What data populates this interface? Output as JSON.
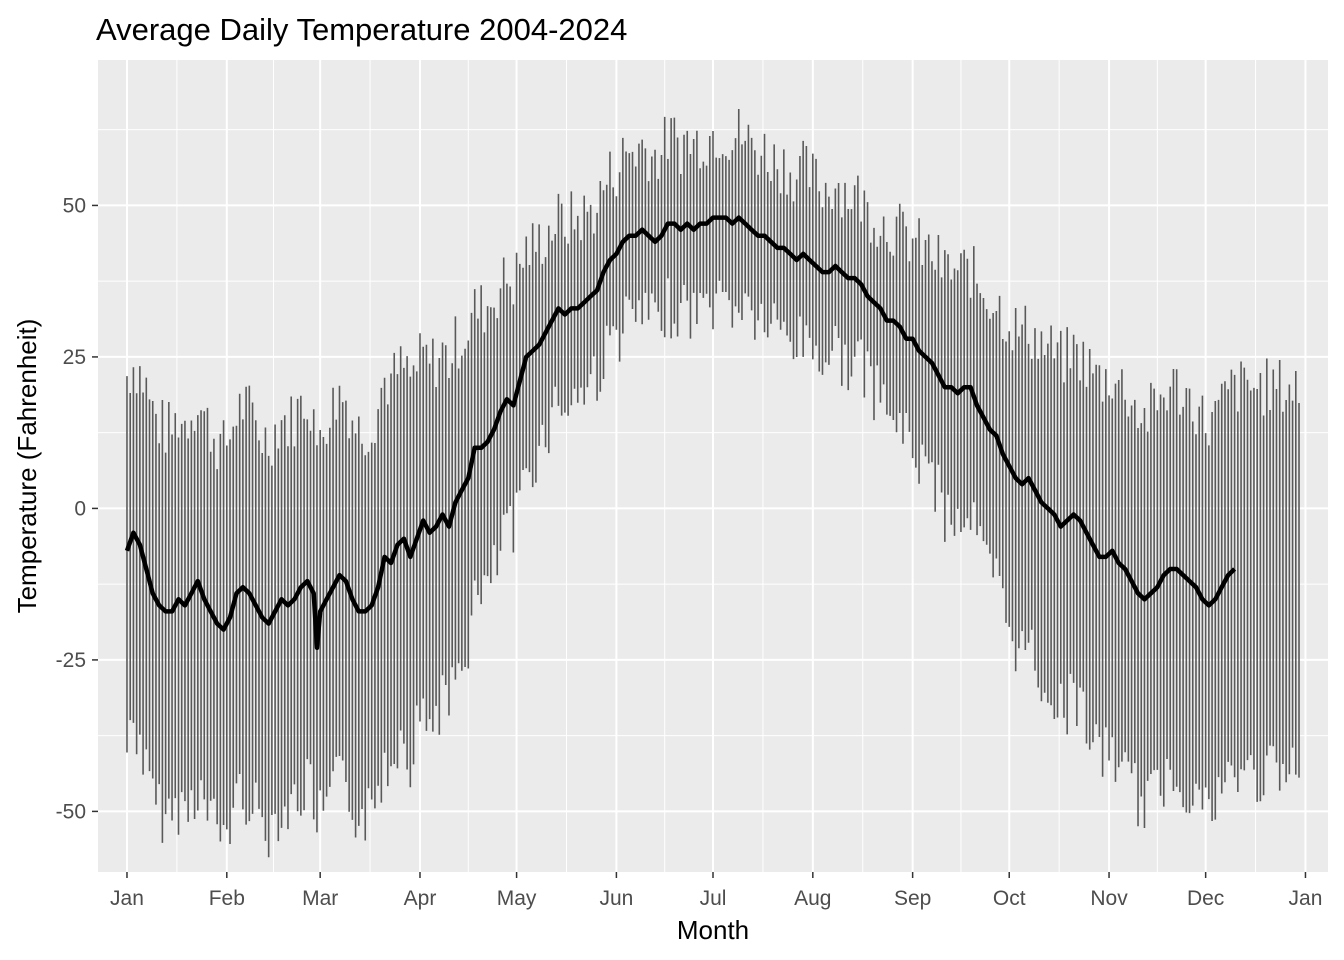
{
  "chart_data": {
    "type": "line",
    "title": "Average Daily Temperature 2004-2024",
    "xlabel": "Month",
    "ylabel": "Temperature (Fahrenheit)",
    "x_unit": "day_of_year",
    "xlim": [
      -8,
      374
    ],
    "ylim": [
      -60,
      74
    ],
    "x_ticks": [
      {
        "label": "Jan",
        "day": 1
      },
      {
        "label": "Feb",
        "day": 32
      },
      {
        "label": "Mar",
        "day": 61
      },
      {
        "label": "Apr",
        "day": 92
      },
      {
        "label": "May",
        "day": 122
      },
      {
        "label": "Jun",
        "day": 153
      },
      {
        "label": "Jul",
        "day": 183
      },
      {
        "label": "Aug",
        "day": 214
      },
      {
        "label": "Sep",
        "day": 245
      },
      {
        "label": "Oct",
        "day": 275
      },
      {
        "label": "Nov",
        "day": 306
      },
      {
        "label": "Dec",
        "day": 336
      },
      {
        "label": "Jan",
        "day": 367
      }
    ],
    "y_ticks": [
      {
        "label": "-50",
        "value": -50
      },
      {
        "label": "-25",
        "value": -25
      },
      {
        "label": "0",
        "value": 0
      },
      {
        "label": "25",
        "value": 25
      },
      {
        "label": "50",
        "value": 50
      }
    ],
    "grid": true,
    "series": [
      {
        "style": "thick-line",
        "color": "#000000",
        "points": [
          [
            1,
            -7
          ],
          [
            3,
            -4
          ],
          [
            5,
            -6
          ],
          [
            7,
            -10
          ],
          [
            9,
            -14
          ],
          [
            11,
            -16
          ],
          [
            13,
            -17
          ],
          [
            15,
            -17
          ],
          [
            17,
            -15
          ],
          [
            19,
            -16
          ],
          [
            21,
            -14
          ],
          [
            23,
            -12
          ],
          [
            25,
            -15
          ],
          [
            27,
            -17
          ],
          [
            29,
            -19
          ],
          [
            31,
            -20
          ],
          [
            33,
            -18
          ],
          [
            35,
            -14
          ],
          [
            37,
            -13
          ],
          [
            39,
            -14
          ],
          [
            41,
            -16
          ],
          [
            43,
            -18
          ],
          [
            45,
            -19
          ],
          [
            47,
            -17
          ],
          [
            49,
            -15
          ],
          [
            51,
            -16
          ],
          [
            53,
            -15
          ],
          [
            55,
            -13
          ],
          [
            57,
            -12
          ],
          [
            59,
            -14
          ],
          [
            60,
            -23
          ],
          [
            61,
            -17
          ],
          [
            63,
            -15
          ],
          [
            65,
            -13
          ],
          [
            67,
            -11
          ],
          [
            69,
            -12
          ],
          [
            71,
            -15
          ],
          [
            73,
            -17
          ],
          [
            75,
            -17
          ],
          [
            77,
            -16
          ],
          [
            79,
            -13
          ],
          [
            81,
            -8
          ],
          [
            83,
            -9
          ],
          [
            85,
            -6
          ],
          [
            87,
            -5
          ],
          [
            89,
            -8
          ],
          [
            91,
            -5
          ],
          [
            93,
            -2
          ],
          [
            95,
            -4
          ],
          [
            97,
            -3
          ],
          [
            99,
            -1
          ],
          [
            101,
            -3
          ],
          [
            103,
            1
          ],
          [
            105,
            3
          ],
          [
            107,
            5
          ],
          [
            109,
            10
          ],
          [
            111,
            10
          ],
          [
            113,
            11
          ],
          [
            115,
            13
          ],
          [
            117,
            16
          ],
          [
            119,
            18
          ],
          [
            121,
            17
          ],
          [
            123,
            21
          ],
          [
            125,
            25
          ],
          [
            127,
            26
          ],
          [
            129,
            27
          ],
          [
            131,
            29
          ],
          [
            133,
            31
          ],
          [
            135,
            33
          ],
          [
            137,
            32
          ],
          [
            139,
            33
          ],
          [
            141,
            33
          ],
          [
            143,
            34
          ],
          [
            145,
            35
          ],
          [
            147,
            36
          ],
          [
            149,
            39
          ],
          [
            151,
            41
          ],
          [
            153,
            42
          ],
          [
            155,
            44
          ],
          [
            157,
            45
          ],
          [
            159,
            45
          ],
          [
            161,
            46
          ],
          [
            163,
            45
          ],
          [
            165,
            44
          ],
          [
            167,
            45
          ],
          [
            169,
            47
          ],
          [
            171,
            47
          ],
          [
            173,
            46
          ],
          [
            175,
            47
          ],
          [
            177,
            46
          ],
          [
            179,
            47
          ],
          [
            181,
            47
          ],
          [
            183,
            48
          ],
          [
            185,
            48
          ],
          [
            187,
            48
          ],
          [
            189,
            47
          ],
          [
            191,
            48
          ],
          [
            193,
            47
          ],
          [
            195,
            46
          ],
          [
            197,
            45
          ],
          [
            199,
            45
          ],
          [
            201,
            44
          ],
          [
            203,
            43
          ],
          [
            205,
            43
          ],
          [
            207,
            42
          ],
          [
            209,
            41
          ],
          [
            211,
            42
          ],
          [
            213,
            41
          ],
          [
            215,
            40
          ],
          [
            217,
            39
          ],
          [
            219,
            39
          ],
          [
            221,
            40
          ],
          [
            223,
            39
          ],
          [
            225,
            38
          ],
          [
            227,
            38
          ],
          [
            229,
            37
          ],
          [
            231,
            35
          ],
          [
            233,
            34
          ],
          [
            235,
            33
          ],
          [
            237,
            31
          ],
          [
            239,
            31
          ],
          [
            241,
            30
          ],
          [
            243,
            28
          ],
          [
            245,
            28
          ],
          [
            247,
            26
          ],
          [
            249,
            25
          ],
          [
            251,
            24
          ],
          [
            253,
            22
          ],
          [
            255,
            20
          ],
          [
            257,
            20
          ],
          [
            259,
            19
          ],
          [
            261,
            20
          ],
          [
            263,
            20
          ],
          [
            265,
            17
          ],
          [
            267,
            15
          ],
          [
            269,
            13
          ],
          [
            271,
            12
          ],
          [
            273,
            9
          ],
          [
            275,
            7
          ],
          [
            277,
            5
          ],
          [
            279,
            4
          ],
          [
            281,
            5
          ],
          [
            283,
            3
          ],
          [
            285,
            1
          ],
          [
            287,
            0
          ],
          [
            289,
            -1
          ],
          [
            291,
            -3
          ],
          [
            293,
            -2
          ],
          [
            295,
            -1
          ],
          [
            297,
            -2
          ],
          [
            299,
            -4
          ],
          [
            301,
            -6
          ],
          [
            303,
            -8
          ],
          [
            305,
            -8
          ],
          [
            307,
            -7
          ],
          [
            309,
            -9
          ],
          [
            311,
            -10
          ],
          [
            313,
            -12
          ],
          [
            315,
            -14
          ],
          [
            317,
            -15
          ],
          [
            319,
            -14
          ],
          [
            321,
            -13
          ],
          [
            323,
            -11
          ],
          [
            325,
            -10
          ],
          [
            327,
            -10
          ],
          [
            329,
            -11
          ],
          [
            331,
            -12
          ],
          [
            333,
            -13
          ],
          [
            335,
            -15
          ],
          [
            337,
            -16
          ],
          [
            339,
            -15
          ],
          [
            341,
            -13
          ],
          [
            343,
            -11
          ],
          [
            345,
            -10
          ]
        ]
      }
    ]
  }
}
